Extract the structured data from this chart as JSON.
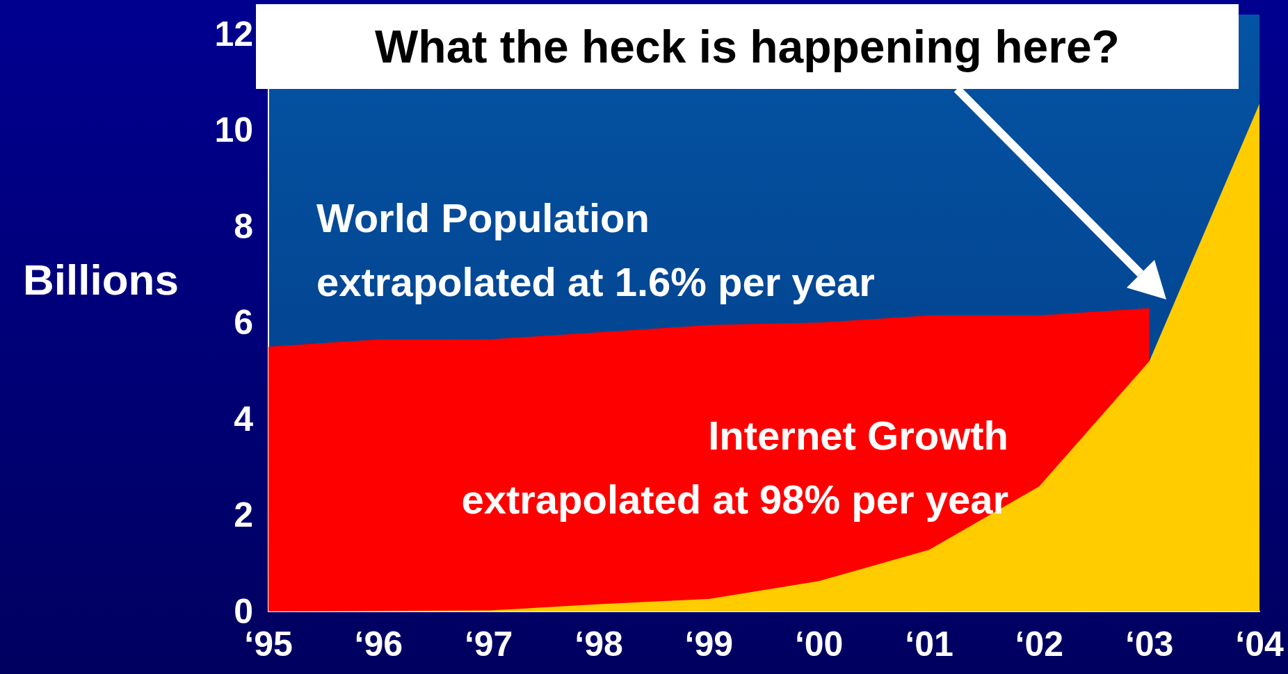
{
  "chart_data": {
    "type": "area",
    "title": "What the heck is happening here?",
    "ylabel": "Billions",
    "categories": [
      "‘95",
      "‘96",
      "‘97",
      "‘98",
      "‘99",
      "‘00",
      "‘01",
      "‘02",
      "‘03",
      "‘04"
    ],
    "series": [
      {
        "name": "World Population",
        "color": "#ff0000",
        "values": [
          5.5,
          5.65,
          5.65,
          5.8,
          5.95,
          6.0,
          6.15,
          6.15,
          6.3,
          null
        ]
      },
      {
        "name": "Internet Growth",
        "color": "#ffcc00",
        "values": [
          0,
          0.01,
          0.02,
          0.15,
          0.26,
          0.63,
          1.28,
          2.6,
          5.2,
          10.55
        ]
      }
    ],
    "annotations": [
      "extrapolated at 1.6% per year",
      "extrapolated at 98% per year"
    ],
    "ylim": [
      0,
      12.4
    ],
    "yticks": [
      0,
      2,
      4,
      6,
      8,
      10,
      12
    ],
    "grid": false,
    "legend": false,
    "marker": "none"
  }
}
